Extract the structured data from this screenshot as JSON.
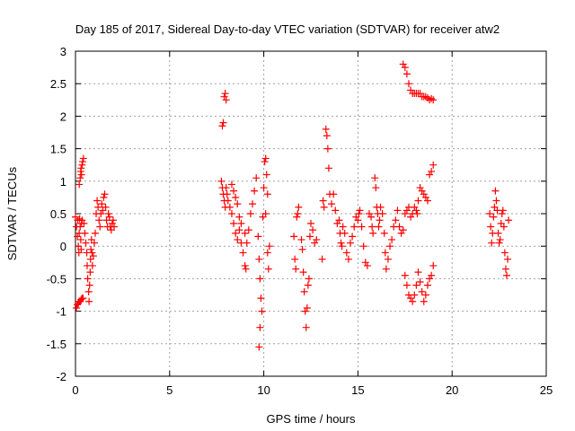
{
  "chart_data": {
    "type": "scatter",
    "title": "Day 185 of 2017, Sidereal Day-to-day VTEC variation (SDTVAR) for receiver atw2",
    "xlabel": "GPS time / hours",
    "ylabel": "SDTVAR / TECUs",
    "xlim": [
      0,
      25
    ],
    "ylim": [
      -2,
      3
    ],
    "xticks": [
      "0",
      "5",
      "10",
      "15",
      "20",
      "25"
    ],
    "yticks": [
      "-2",
      "-1.5",
      "-1",
      "-0.5",
      "0",
      "0.5",
      "1",
      "1.5",
      "2",
      "2.5",
      "3"
    ],
    "grid": true,
    "marker": "+",
    "color": "#ff0000",
    "series": [
      {
        "name": "SDTVAR",
        "points": [
          [
            0.0,
            0.45
          ],
          [
            0.05,
            0.3
          ],
          [
            0.1,
            0.15
          ],
          [
            0.12,
            0.4
          ],
          [
            0.15,
            0.0
          ],
          [
            0.18,
            -0.1
          ],
          [
            0.2,
            0.2
          ],
          [
            0.22,
            0.42
          ],
          [
            0.25,
            0.3
          ],
          [
            0.28,
            0.1
          ],
          [
            0.3,
            -0.05
          ],
          [
            0.32,
            0.35
          ],
          [
            0.35,
            0.4
          ],
          [
            0.05,
            -0.95
          ],
          [
            0.1,
            -0.9
          ],
          [
            0.15,
            -0.88
          ],
          [
            0.2,
            -0.85
          ],
          [
            0.25,
            -0.85
          ],
          [
            0.3,
            -0.82
          ],
          [
            0.35,
            -0.8
          ],
          [
            0.4,
            -0.8
          ],
          [
            0.2,
            0.95
          ],
          [
            0.25,
            1.05
          ],
          [
            0.28,
            1.15
          ],
          [
            0.3,
            1.2
          ],
          [
            0.32,
            1.1
          ],
          [
            0.35,
            1.25
          ],
          [
            0.38,
            1.3
          ],
          [
            0.42,
            1.35
          ],
          [
            0.45,
            0.35
          ],
          [
            0.5,
            0.2
          ],
          [
            0.55,
            0.05
          ],
          [
            0.6,
            -0.1
          ],
          [
            0.62,
            -0.3
          ],
          [
            0.65,
            -0.5
          ],
          [
            0.7,
            -0.7
          ],
          [
            0.72,
            -0.85
          ],
          [
            0.75,
            -0.6
          ],
          [
            0.78,
            -0.4
          ],
          [
            0.8,
            -0.2
          ],
          [
            0.82,
            -0.05
          ],
          [
            0.85,
            0.1
          ],
          [
            0.88,
            -0.1
          ],
          [
            0.9,
            -0.3
          ],
          [
            0.95,
            -0.15
          ],
          [
            1.0,
            0.05
          ],
          [
            1.05,
            0.2
          ],
          [
            1.1,
            0.5
          ],
          [
            1.15,
            0.7
          ],
          [
            1.2,
            0.6
          ],
          [
            1.25,
            0.4
          ],
          [
            1.3,
            0.3
          ],
          [
            1.35,
            0.5
          ],
          [
            1.4,
            0.65
          ],
          [
            1.45,
            0.55
          ],
          [
            1.5,
            0.75
          ],
          [
            1.55,
            0.8
          ],
          [
            1.6,
            0.6
          ],
          [
            1.65,
            0.4
          ],
          [
            1.7,
            0.3
          ],
          [
            1.75,
            0.5
          ],
          [
            1.8,
            0.45
          ],
          [
            1.85,
            0.3
          ],
          [
            1.9,
            0.25
          ],
          [
            1.95,
            0.35
          ],
          [
            2.0,
            0.4
          ],
          [
            2.05,
            0.3
          ],
          [
            7.8,
            1.85
          ],
          [
            7.85,
            1.9
          ],
          [
            7.9,
            2.3
          ],
          [
            7.95,
            2.35
          ],
          [
            8.0,
            2.25
          ],
          [
            7.75,
            1.0
          ],
          [
            7.8,
            0.9
          ],
          [
            7.85,
            0.8
          ],
          [
            7.9,
            0.7
          ],
          [
            7.95,
            0.6
          ],
          [
            8.0,
            0.9
          ],
          [
            8.05,
            0.8
          ],
          [
            8.1,
            0.7
          ],
          [
            8.2,
            0.6
          ],
          [
            8.3,
            0.5
          ],
          [
            8.4,
            0.35
          ],
          [
            8.5,
            0.2
          ],
          [
            8.6,
            0.1
          ],
          [
            8.7,
            0.25
          ],
          [
            8.8,
            0.05
          ],
          [
            8.9,
            -0.1
          ],
          [
            9.0,
            -0.3
          ],
          [
            9.05,
            -0.35
          ],
          [
            8.3,
            0.95
          ],
          [
            8.4,
            0.85
          ],
          [
            8.5,
            0.75
          ],
          [
            8.6,
            0.65
          ],
          [
            8.7,
            0.45
          ],
          [
            8.8,
            0.35
          ],
          [
            9.0,
            0.2
          ],
          [
            9.1,
            0.05
          ],
          [
            9.2,
            0.25
          ],
          [
            9.3,
            0.5
          ],
          [
            9.4,
            0.65
          ],
          [
            9.5,
            0.85
          ],
          [
            9.6,
            1.05
          ],
          [
            9.7,
            0.15
          ],
          [
            9.75,
            -0.2
          ],
          [
            9.8,
            -0.5
          ],
          [
            9.85,
            -0.8
          ],
          [
            9.9,
            -1.0
          ],
          [
            9.8,
            -1.25
          ],
          [
            9.75,
            -1.55
          ],
          [
            9.95,
            0.45
          ],
          [
            10.0,
            0.9
          ],
          [
            10.05,
            1.3
          ],
          [
            10.1,
            1.35
          ],
          [
            10.15,
            1.1
          ],
          [
            10.2,
            0.8
          ],
          [
            10.1,
            0.5
          ],
          [
            10.2,
            -0.1
          ],
          [
            10.25,
            -0.35
          ],
          [
            10.3,
            0.0
          ],
          [
            11.6,
            0.15
          ],
          [
            11.65,
            -0.2
          ],
          [
            11.7,
            -0.35
          ],
          [
            11.75,
            0.45
          ],
          [
            11.8,
            0.5
          ],
          [
            11.85,
            0.6
          ],
          [
            12.0,
            0.1
          ],
          [
            12.05,
            -0.05
          ],
          [
            12.1,
            -0.4
          ],
          [
            12.15,
            -0.7
          ],
          [
            12.2,
            -1.0
          ],
          [
            12.25,
            -1.25
          ],
          [
            12.3,
            -0.95
          ],
          [
            12.35,
            -0.6
          ],
          [
            12.4,
            -0.5
          ],
          [
            12.45,
            0.15
          ],
          [
            12.5,
            0.35
          ],
          [
            12.6,
            0.25
          ],
          [
            12.7,
            0.05
          ],
          [
            12.8,
            0.1
          ],
          [
            13.1,
            -0.2
          ],
          [
            13.15,
            0.7
          ],
          [
            13.2,
            0.6
          ],
          [
            13.3,
            1.8
          ],
          [
            13.35,
            1.7
          ],
          [
            13.4,
            1.5
          ],
          [
            13.45,
            1.2
          ],
          [
            13.5,
            0.8
          ],
          [
            13.6,
            0.65
          ],
          [
            13.7,
            0.8
          ],
          [
            13.8,
            0.55
          ],
          [
            13.9,
            0.35
          ],
          [
            14.0,
            0.4
          ],
          [
            14.05,
            0.2
          ],
          [
            14.1,
            0.05
          ],
          [
            14.15,
            0.0
          ],
          [
            14.2,
            0.3
          ],
          [
            14.3,
            0.2
          ],
          [
            14.4,
            -0.1
          ],
          [
            14.5,
            -0.2
          ],
          [
            14.6,
            0.05
          ],
          [
            14.7,
            0.15
          ],
          [
            14.8,
            0.3
          ],
          [
            14.9,
            0.45
          ],
          [
            15.0,
            0.4
          ],
          [
            15.05,
            0.5
          ],
          [
            15.1,
            0.55
          ],
          [
            15.2,
            0.3
          ],
          [
            15.3,
            0.0
          ],
          [
            15.4,
            -0.25
          ],
          [
            15.5,
            -0.3
          ],
          [
            15.6,
            0.5
          ],
          [
            15.7,
            0.45
          ],
          [
            15.75,
            0.3
          ],
          [
            15.8,
            0.2
          ],
          [
            15.9,
            1.05
          ],
          [
            15.95,
            0.9
          ],
          [
            16.0,
            0.6
          ],
          [
            16.05,
            0.5
          ],
          [
            16.1,
            0.3
          ],
          [
            16.15,
            0.4
          ],
          [
            16.2,
            0.6
          ],
          [
            16.3,
            0.5
          ],
          [
            16.4,
            0.2
          ],
          [
            16.45,
            -0.1
          ],
          [
            16.5,
            -0.35
          ],
          [
            16.6,
            -0.2
          ],
          [
            16.7,
            0.0
          ],
          [
            16.8,
            0.1
          ],
          [
            16.9,
            0.3
          ],
          [
            17.0,
            0.4
          ],
          [
            17.1,
            0.55
          ],
          [
            17.2,
            0.3
          ],
          [
            17.3,
            0.2
          ],
          [
            17.4,
            0.25
          ],
          [
            17.5,
            0.5
          ],
          [
            17.6,
            0.55
          ],
          [
            17.7,
            0.6
          ],
          [
            17.8,
            0.45
          ],
          [
            17.9,
            0.5
          ],
          [
            18.0,
            0.6
          ],
          [
            18.1,
            0.55
          ],
          [
            18.15,
            0.5
          ],
          [
            18.2,
            0.7
          ],
          [
            18.3,
            0.9
          ],
          [
            18.4,
            0.85
          ],
          [
            18.5,
            0.8
          ],
          [
            18.6,
            0.75
          ],
          [
            18.7,
            0.7
          ],
          [
            18.8,
            1.1
          ],
          [
            18.9,
            1.15
          ],
          [
            19.0,
            1.25
          ],
          [
            17.4,
            2.8
          ],
          [
            17.5,
            2.75
          ],
          [
            17.6,
            2.65
          ],
          [
            17.7,
            2.5
          ],
          [
            17.8,
            2.4
          ],
          [
            17.9,
            2.35
          ],
          [
            18.0,
            2.35
          ],
          [
            18.1,
            2.35
          ],
          [
            18.2,
            2.35
          ],
          [
            18.3,
            2.35
          ],
          [
            18.4,
            2.3
          ],
          [
            18.5,
            2.3
          ],
          [
            18.6,
            2.3
          ],
          [
            18.7,
            2.28
          ],
          [
            18.8,
            2.25
          ],
          [
            18.9,
            2.27
          ],
          [
            19.0,
            2.25
          ],
          [
            17.5,
            -0.45
          ],
          [
            17.6,
            -0.6
          ],
          [
            17.7,
            -0.75
          ],
          [
            17.8,
            -0.8
          ],
          [
            17.9,
            -0.85
          ],
          [
            18.0,
            -0.75
          ],
          [
            18.1,
            -0.6
          ],
          [
            18.2,
            -0.4
          ],
          [
            18.3,
            -0.55
          ],
          [
            18.4,
            -0.7
          ],
          [
            18.5,
            -0.85
          ],
          [
            18.6,
            -0.75
          ],
          [
            18.7,
            -0.6
          ],
          [
            18.8,
            -0.5
          ],
          [
            18.9,
            -0.45
          ],
          [
            19.0,
            -0.3
          ],
          [
            22.0,
            0.5
          ],
          [
            22.05,
            0.3
          ],
          [
            22.1,
            0.05
          ],
          [
            22.15,
            0.2
          ],
          [
            22.2,
            0.45
          ],
          [
            22.25,
            0.6
          ],
          [
            22.3,
            0.85
          ],
          [
            22.35,
            0.7
          ],
          [
            22.4,
            0.55
          ],
          [
            22.45,
            0.2
          ],
          [
            22.5,
            0.05
          ],
          [
            22.55,
            0.1
          ],
          [
            22.6,
            0.35
          ],
          [
            22.65,
            0.5
          ],
          [
            22.7,
            0.55
          ],
          [
            22.75,
            0.3
          ],
          [
            22.8,
            -0.1
          ],
          [
            22.85,
            -0.35
          ],
          [
            22.9,
            -0.45
          ],
          [
            22.95,
            -0.2
          ],
          [
            23.0,
            0.4
          ]
        ]
      }
    ]
  }
}
